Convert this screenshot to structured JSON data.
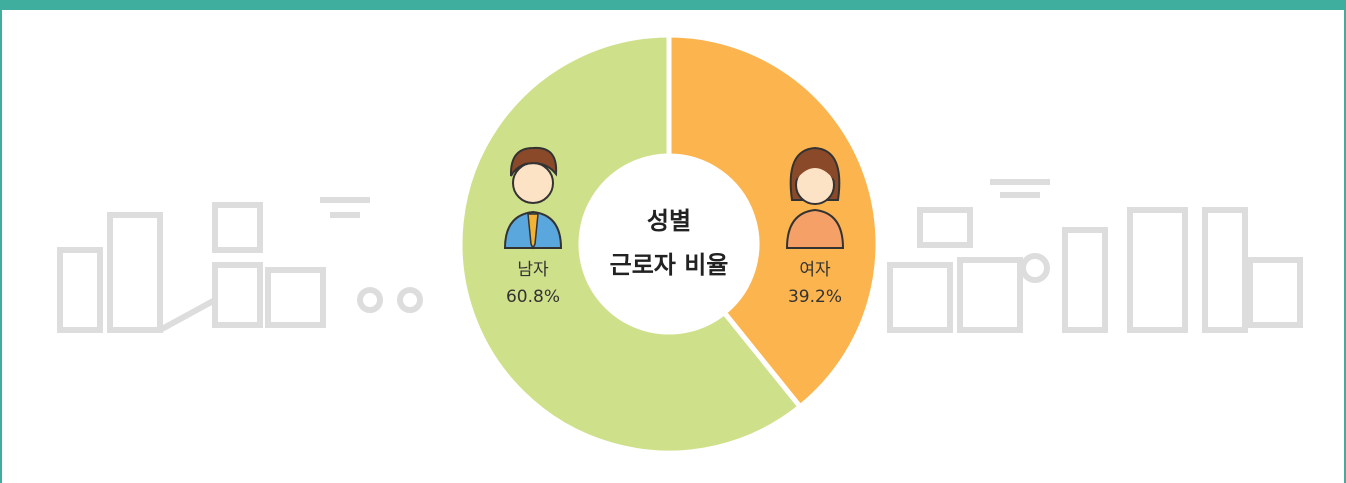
{
  "chart_data": {
    "type": "donut",
    "title": [
      "성별",
      "근로자 비율"
    ],
    "categories": [
      "남자",
      "여자"
    ],
    "values": [
      60.8,
      39.2
    ],
    "value_labels": [
      "60.8%",
      "39.2%"
    ],
    "colors": [
      "#cfe08b",
      "#fbb44e"
    ]
  }
}
